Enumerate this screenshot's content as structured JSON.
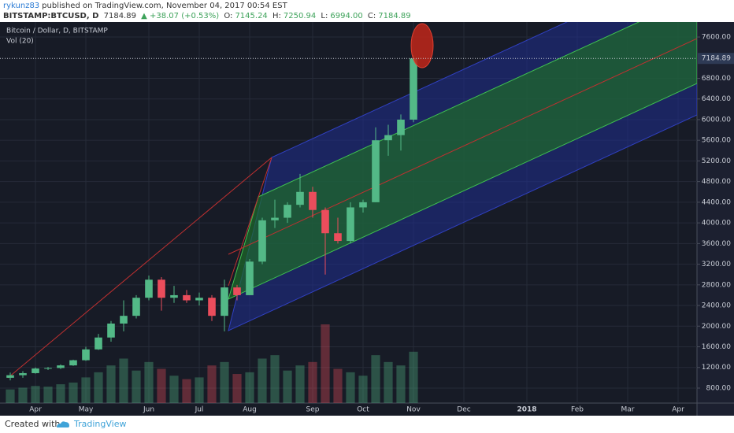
{
  "header": {
    "user": "rykunz83",
    "published": "published on TradingView.com, November 04, 2017 00:54 EST",
    "symbol": "BITSTAMP:BTCUSD, D",
    "price": "7184.89",
    "change": "▲ +38.07 (+0.53%)",
    "open_label": "O:",
    "open": "7145.24",
    "high_label": "H:",
    "high": "7250.94",
    "low_label": "L:",
    "low": "6994.00",
    "close_label": "C:",
    "close": "7184.89"
  },
  "chart_data": {
    "type": "candlestick",
    "legend": [
      "Bitcoin / Dollar, D, BITSTAMP",
      "Vol (20)"
    ],
    "categories": [
      null,
      null,
      "Apr",
      null,
      null,
      null,
      "May",
      null,
      null,
      null,
      null,
      "Jun",
      null,
      null,
      null,
      "Jul",
      null,
      null,
      null,
      "Aug",
      null,
      null,
      null,
      null,
      "Sep",
      null,
      null,
      null,
      "Oct",
      null,
      null,
      null,
      "Nov",
      null,
      null,
      null,
      "Dec",
      null,
      null,
      null,
      null,
      "2018",
      null,
      null,
      null,
      "Feb",
      null,
      null,
      null,
      "Mar",
      null,
      null,
      null,
      "Apr",
      null
    ],
    "open": [
      1000,
      1050,
      1090,
      1180,
      1190,
      1240,
      1340,
      1550,
      1780,
      2050,
      2200,
      2550,
      2900,
      2550,
      2600,
      2500,
      2550,
      2200,
      2750,
      2600,
      3250,
      4050,
      4100,
      4350,
      4600,
      4250,
      3800,
      3650,
      4300,
      4400,
      5600,
      5700,
      6000,
      null,
      null,
      null,
      null,
      null,
      null,
      null,
      null,
      null,
      null,
      null,
      null,
      null,
      null,
      null,
      null,
      null,
      null,
      null,
      null,
      null,
      null
    ],
    "high": [
      1100,
      1130,
      1200,
      1210,
      1260,
      1350,
      1600,
      1850,
      2100,
      2500,
      2600,
      2980,
      2950,
      2780,
      2700,
      2650,
      2600,
      2900,
      2800,
      3300,
      4100,
      4450,
      4400,
      4950,
      4700,
      4300,
      4100,
      4400,
      4450,
      5850,
      5900,
      6100,
      7250,
      null,
      null,
      null,
      null,
      null,
      null,
      null,
      null,
      null,
      null,
      null,
      null,
      null,
      null,
      null,
      null,
      null,
      null,
      null,
      null,
      null,
      null
    ],
    "low": [
      950,
      1000,
      1080,
      1150,
      1170,
      1230,
      1330,
      1540,
      1700,
      1900,
      2150,
      2500,
      2300,
      2450,
      2450,
      2400,
      2100,
      1900,
      2500,
      2600,
      3200,
      3900,
      4000,
      4300,
      4100,
      3000,
      3600,
      3600,
      4200,
      4400,
      5300,
      5400,
      5950,
      null,
      null,
      null,
      null,
      null,
      null,
      null,
      null,
      null,
      null,
      null,
      null,
      null,
      null,
      null,
      null,
      null,
      null,
      null,
      null,
      null,
      null
    ],
    "close": [
      1050,
      1090,
      1180,
      1190,
      1240,
      1340,
      1550,
      1780,
      2050,
      2200,
      2550,
      2900,
      2550,
      2600,
      2500,
      2550,
      2200,
      2750,
      2600,
      3250,
      4050,
      4100,
      4350,
      4600,
      4250,
      3800,
      3650,
      4300,
      4400,
      5600,
      5700,
      6000,
      7185,
      null,
      null,
      null,
      null,
      null,
      null,
      null,
      null,
      null,
      null,
      null,
      null,
      null,
      null,
      null,
      null,
      null,
      null,
      null,
      null,
      null,
      null
    ],
    "volume": [
      40,
      45,
      50,
      48,
      55,
      60,
      75,
      90,
      110,
      130,
      95,
      120,
      100,
      80,
      70,
      75,
      110,
      120,
      85,
      90,
      130,
      140,
      95,
      110,
      120,
      230,
      100,
      90,
      80,
      140,
      120,
      110,
      150,
      null,
      null,
      null,
      null,
      null,
      null,
      null,
      null,
      null,
      null,
      null,
      null,
      null,
      null,
      null,
      null,
      null,
      null,
      null,
      null,
      null,
      null
    ],
    "up_color": "#53b987",
    "down_color": "#eb4d5c",
    "ylim": [
      510,
      7890
    ],
    "yticks": [
      {
        "value": 800,
        "label": "800.00"
      },
      {
        "value": 1200,
        "label": "1200.00"
      },
      {
        "value": 1600,
        "label": "1600.00"
      },
      {
        "value": 2000,
        "label": "2000.00"
      },
      {
        "value": 2400,
        "label": "2400.00"
      },
      {
        "value": 2800,
        "label": "2800.00"
      },
      {
        "value": 3200,
        "label": "3200.00"
      },
      {
        "value": 3600,
        "label": "3600.00"
      },
      {
        "value": 4000,
        "label": "4000.00"
      },
      {
        "value": 4400,
        "label": "4400.00"
      },
      {
        "value": 4800,
        "label": "4800.00"
      },
      {
        "value": 5200,
        "label": "5200.00"
      },
      {
        "value": 5600,
        "label": "5600.00"
      },
      {
        "value": 6000,
        "label": "6000.00"
      },
      {
        "value": 6400,
        "label": "6400.00"
      },
      {
        "value": 6800,
        "label": "6800.00"
      },
      {
        "value": 7600,
        "label": "7600.00"
      }
    ],
    "last_price": 7184.89,
    "grid": true
  },
  "footer": {
    "created": "Created with",
    "brand": "TradingView"
  }
}
